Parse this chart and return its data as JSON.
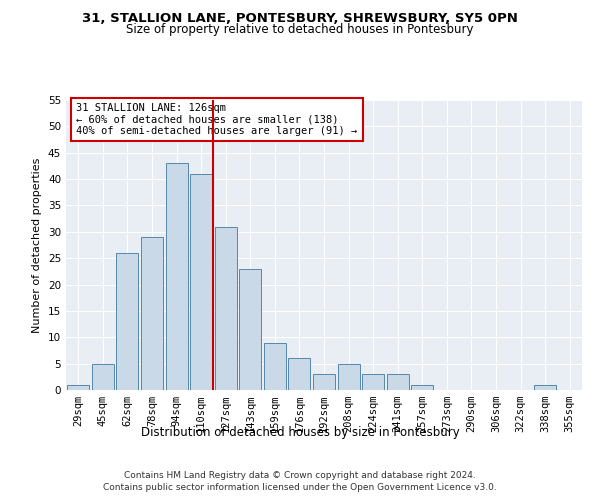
{
  "title1": "31, STALLION LANE, PONTESBURY, SHREWSBURY, SY5 0PN",
  "title2": "Size of property relative to detached houses in Pontesbury",
  "xlabel": "Distribution of detached houses by size in Pontesbury",
  "ylabel": "Number of detached properties",
  "bin_labels": [
    "29sqm",
    "45sqm",
    "62sqm",
    "78sqm",
    "94sqm",
    "110sqm",
    "127sqm",
    "143sqm",
    "159sqm",
    "176sqm",
    "192sqm",
    "208sqm",
    "224sqm",
    "241sqm",
    "257sqm",
    "273sqm",
    "290sqm",
    "306sqm",
    "322sqm",
    "338sqm",
    "355sqm"
  ],
  "bar_values": [
    1,
    5,
    26,
    29,
    43,
    41,
    31,
    23,
    9,
    6,
    3,
    5,
    3,
    3,
    1,
    0,
    0,
    0,
    0,
    1,
    0
  ],
  "bar_color": "#c9d9e8",
  "bar_edge_color": "#5588aa",
  "vline_x": 5.5,
  "vline_color": "#cc0000",
  "annotation_text": "31 STALLION LANE: 126sqm\n← 60% of detached houses are smaller (138)\n40% of semi-detached houses are larger (91) →",
  "annotation_box_color": "#ffffff",
  "annotation_box_edge": "#cc0000",
  "ylim": [
    0,
    55
  ],
  "yticks": [
    0,
    5,
    10,
    15,
    20,
    25,
    30,
    35,
    40,
    45,
    50,
    55
  ],
  "bg_color": "#e8eef4",
  "footer1": "Contains HM Land Registry data © Crown copyright and database right 2024.",
  "footer2": "Contains public sector information licensed under the Open Government Licence v3.0.",
  "title1_fontsize": 9,
  "title2_fontsize": 8.5
}
